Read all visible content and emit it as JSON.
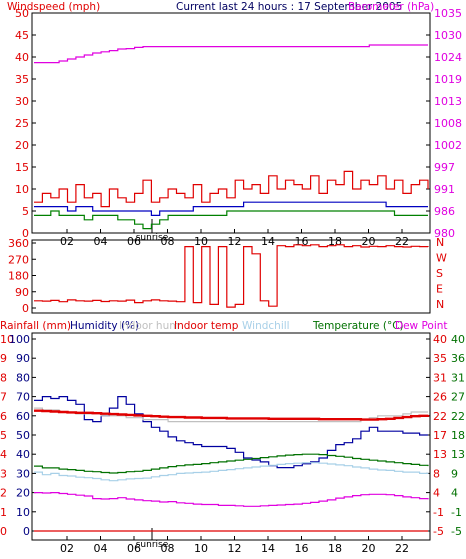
{
  "chart_data": [
    {
      "type": "line",
      "header_left": "Windspeed (mph)",
      "header_center": "Current last 24 hours : 17 September 2005",
      "header_right": "Barometer (hPa)",
      "x_ticks": [
        "02",
        "04",
        "06",
        "08",
        "10",
        "12",
        "14",
        "16",
        "18",
        "20",
        "22"
      ],
      "x_marker": "sunrise",
      "ylim_left": [
        0,
        50
      ],
      "yticks_left": [
        "0",
        "5",
        "10",
        "15",
        "20",
        "25",
        "30",
        "35",
        "40",
        "45",
        "50"
      ],
      "ylim_right": [
        980,
        1035
      ],
      "yticks_right": [
        "980",
        "986",
        "991",
        "997",
        "1002",
        "1008",
        "1013",
        "1019",
        "1024",
        "1030",
        "1035"
      ],
      "series": [
        {
          "name": "Windspeed",
          "color": "#e00000",
          "axis": "left",
          "values": [
            7,
            9,
            8,
            10,
            7,
            11,
            8,
            9,
            6,
            10,
            8,
            7,
            9,
            12,
            7,
            8,
            10,
            9,
            8,
            11,
            7,
            9,
            10,
            8,
            12,
            10,
            11,
            9,
            13,
            10,
            12,
            11,
            10,
            13,
            9,
            12,
            11,
            14,
            10,
            12,
            11,
            13,
            10,
            12,
            9,
            11,
            12,
            10
          ]
        },
        {
          "name": "Average wind",
          "color": "#0000c0",
          "axis": "left",
          "values": [
            6,
            6,
            6,
            6,
            5,
            6,
            6,
            5,
            5,
            5,
            5,
            5,
            5,
            5,
            4,
            5,
            5,
            5,
            5,
            6,
            6,
            6,
            6,
            6,
            6,
            7,
            7,
            7,
            7,
            7,
            7,
            7,
            7,
            7,
            7,
            7,
            7,
            7,
            7,
            7,
            7,
            7,
            6,
            6,
            6,
            6,
            6,
            6
          ]
        },
        {
          "name": "Gust lull",
          "color": "#008000",
          "axis": "left",
          "values": [
            4,
            4,
            5,
            4,
            4,
            4,
            3,
            4,
            4,
            4,
            3,
            3,
            2,
            1,
            2,
            3,
            4,
            4,
            4,
            4,
            4,
            4,
            4,
            5,
            5,
            5,
            5,
            5,
            5,
            5,
            5,
            5,
            5,
            5,
            5,
            5,
            5,
            5,
            5,
            5,
            5,
            5,
            5,
            4,
            4,
            4,
            4,
            4
          ]
        },
        {
          "name": "Barometer",
          "color": "#e000e0",
          "axis": "right",
          "values": [
            1022.6,
            1022.6,
            1022.6,
            1023.0,
            1023.5,
            1024.0,
            1024.5,
            1025.0,
            1025.3,
            1025.6,
            1026.0,
            1026.1,
            1026.4,
            1026.6,
            1026.6,
            1026.6,
            1026.6,
            1026.6,
            1026.6,
            1026.6,
            1026.6,
            1026.6,
            1026.6,
            1026.6,
            1026.6,
            1026.6,
            1026.6,
            1026.6,
            1026.6,
            1026.6,
            1026.6,
            1026.6,
            1026.6,
            1026.6,
            1026.6,
            1026.6,
            1026.6,
            1026.6,
            1026.6,
            1026.6,
            1027.0,
            1027.0,
            1027.0,
            1027.0,
            1027.0,
            1027.0,
            1027.0,
            1027.0
          ]
        }
      ]
    },
    {
      "type": "line",
      "ylim_left": [
        0,
        360
      ],
      "yticks_left": [
        "0",
        "90",
        "180",
        "270",
        "360"
      ],
      "right_labels": [
        "N",
        "W",
        "S",
        "E",
        "N"
      ],
      "series": [
        {
          "name": "Wind direction",
          "color": "#e00000",
          "values": [
            40,
            38,
            42,
            35,
            45,
            40,
            38,
            42,
            36,
            40,
            38,
            44,
            30,
            40,
            45,
            40,
            38,
            35,
            340,
            30,
            340,
            20,
            340,
            5,
            20,
            340,
            300,
            40,
            10,
            345,
            340,
            350,
            345,
            350,
            340,
            345,
            350,
            340,
            345,
            338,
            342,
            340,
            345,
            340,
            338,
            342,
            340,
            338
          ]
        }
      ]
    },
    {
      "type": "line",
      "header_labels": [
        "Rainfall (mm)",
        "Humidity (%)",
        "Indoor hum",
        "Indoor temp",
        "Windchill",
        "Temperature (°C)",
        "Dew Point"
      ],
      "x_ticks": [
        "02",
        "04",
        "06",
        "08",
        "10",
        "12",
        "14",
        "16",
        "18",
        "20",
        "22"
      ],
      "x_marker": "sunrise",
      "yticks_left_outer": [
        "0",
        "1",
        "2",
        "3",
        "4",
        "5",
        "6",
        "7",
        "8",
        "9",
        "10"
      ],
      "yticks_left_inner": [
        "0",
        "10",
        "20",
        "30",
        "40",
        "50",
        "60",
        "70",
        "80",
        "90",
        "100"
      ],
      "yticks_right_inner": [
        "-5",
        "-1",
        "4",
        "8",
        "13",
        "17",
        "22",
        "26",
        "31",
        "35",
        "40"
      ],
      "yticks_right_outer": [
        "-5",
        "-1",
        "4",
        "9",
        "13",
        "18",
        "22",
        "27",
        "31",
        "36",
        "40"
      ],
      "ylim_temp": [
        -5,
        40
      ],
      "ylim_humidity": [
        0,
        100
      ],
      "series": [
        {
          "name": "Humidity",
          "color": "#0000a0",
          "axis": "humidity",
          "values": [
            68,
            70,
            69,
            70,
            68,
            66,
            58,
            57,
            60,
            64,
            70,
            66,
            61,
            57,
            54,
            52,
            49,
            47,
            46,
            45,
            44,
            44,
            44,
            43,
            41,
            38,
            37,
            36,
            34,
            33,
            33,
            34,
            35,
            36,
            38,
            42,
            45,
            46,
            48,
            52,
            54,
            52,
            52,
            52,
            51,
            51,
            50,
            50
          ]
        },
        {
          "name": "Indoor hum",
          "color": "#c0c0c0",
          "axis": "humidity",
          "values": [
            64,
            63,
            63,
            62,
            62,
            61,
            61,
            61,
            60,
            60,
            60,
            59,
            59,
            58,
            58,
            58,
            57,
            57,
            57,
            57,
            57,
            57,
            57,
            57,
            57,
            57,
            57,
            57,
            57,
            57,
            57,
            57,
            57,
            57,
            57,
            57,
            57,
            57,
            57,
            58,
            59,
            60,
            60,
            60,
            61,
            62,
            62,
            62
          ]
        },
        {
          "name": "Indoor temp",
          "color": "#e00000",
          "axis": "temp",
          "values": [
            23.2,
            23.1,
            23.0,
            22.9,
            22.8,
            22.7,
            22.7,
            22.6,
            22.5,
            22.4,
            22.3,
            22.2,
            22.1,
            22.0,
            21.9,
            21.8,
            21.7,
            21.7,
            21.6,
            21.6,
            21.5,
            21.5,
            21.5,
            21.4,
            21.4,
            21.4,
            21.4,
            21.4,
            21.3,
            21.3,
            21.3,
            21.3,
            21.3,
            21.3,
            21.2,
            21.2,
            21.2,
            21.2,
            21.2,
            21.1,
            21.1,
            21.2,
            21.3,
            21.5,
            21.7,
            21.9,
            22.0,
            22.2
          ]
        },
        {
          "name": "Windchill",
          "color": "#a8d0e8",
          "axis": "temp",
          "values": [
            8.8,
            8.2,
            8.5,
            8.0,
            7.9,
            7.6,
            7.5,
            7.3,
            7.0,
            6.8,
            7.0,
            7.2,
            7.3,
            7.4,
            7.7,
            8.0,
            8.2,
            8.5,
            8.6,
            8.7,
            8.8,
            9.0,
            9.2,
            9.4,
            9.6,
            9.8,
            10.0,
            10.2,
            10.4,
            10.6,
            10.8,
            10.9,
            11.0,
            11.0,
            10.9,
            10.7,
            10.5,
            10.3,
            10.0,
            9.8,
            9.5,
            9.3,
            9.2,
            9.0,
            8.8,
            8.8,
            8.5,
            8.4
          ]
        },
        {
          "name": "Temperature",
          "color": "#007000",
          "axis": "temp",
          "values": [
            10.2,
            9.8,
            9.8,
            9.5,
            9.4,
            9.2,
            9.0,
            8.9,
            8.7,
            8.6,
            8.7,
            8.9,
            9.0,
            9.2,
            9.5,
            9.8,
            10.1,
            10.3,
            10.5,
            10.6,
            10.8,
            11.0,
            11.2,
            11.4,
            11.6,
            11.8,
            12.0,
            12.2,
            12.4,
            12.6,
            12.8,
            12.9,
            13.0,
            13.0,
            12.9,
            12.7,
            12.5,
            12.3,
            12.0,
            11.8,
            11.6,
            11.4,
            11.2,
            11.0,
            10.8,
            10.6,
            10.4,
            10.2
          ]
        },
        {
          "name": "Dew Point",
          "color": "#e000e0",
          "axis": "temp",
          "values": [
            4.0,
            3.9,
            4.0,
            3.8,
            3.6,
            3.4,
            3.2,
            2.6,
            2.5,
            2.6,
            2.8,
            2.5,
            2.3,
            2.1,
            2.0,
            1.8,
            1.9,
            1.6,
            1.5,
            1.3,
            1.2,
            1.2,
            1.0,
            1.0,
            0.9,
            0.8,
            0.8,
            0.9,
            1.0,
            1.1,
            1.2,
            1.3,
            1.5,
            1.7,
            2.0,
            2.3,
            2.7,
            3.0,
            3.3,
            3.5,
            3.6,
            3.6,
            3.5,
            3.3,
            3.0,
            2.8,
            2.6,
            2.4
          ]
        },
        {
          "name": "Rainfall",
          "color": "#e00000",
          "axis": "rain",
          "values": [
            0,
            0,
            0,
            0,
            0,
            0,
            0,
            0,
            0,
            0,
            0,
            0,
            0,
            0,
            0,
            0,
            0,
            0,
            0,
            0,
            0,
            0,
            0,
            0,
            0,
            0,
            0,
            0,
            0,
            0,
            0,
            0,
            0,
            0,
            0,
            0,
            0,
            0,
            0,
            0,
            0,
            0,
            0,
            0,
            0,
            0,
            0,
            0
          ]
        }
      ]
    }
  ]
}
